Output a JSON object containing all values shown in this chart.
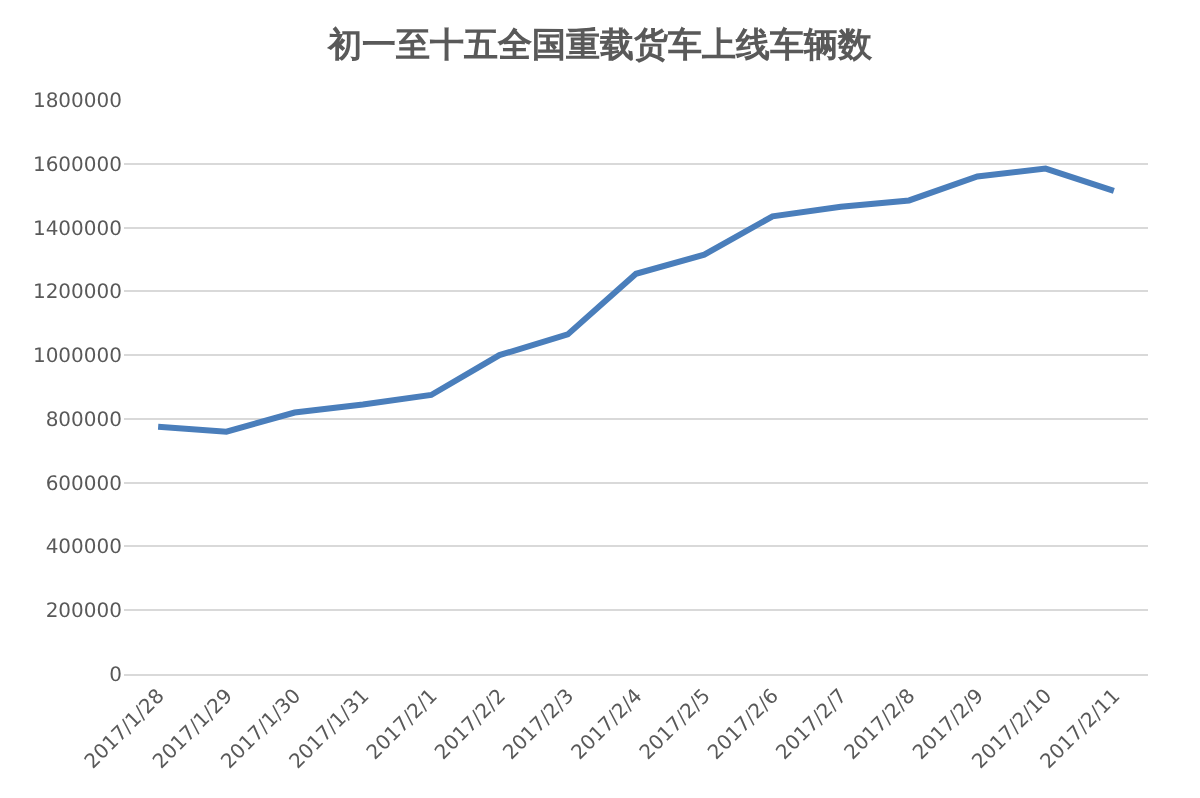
{
  "chart_data": {
    "type": "line",
    "title": "初一至十五全国重载货车上线车辆数",
    "categories": [
      "2017/1/28",
      "2017/1/29",
      "2017/1/30",
      "2017/1/31",
      "2017/2/1",
      "2017/2/2",
      "2017/2/3",
      "2017/2/4",
      "2017/2/5",
      "2017/2/6",
      "2017/2/7",
      "2017/2/8",
      "2017/2/9",
      "2017/2/10",
      "2017/2/11"
    ],
    "series": [
      {
        "color": "#4a7ebb",
        "values": [
          775000,
          760000,
          820000,
          845000,
          875000,
          1000000,
          1065000,
          1255000,
          1315000,
          1435000,
          1465000,
          1485000,
          1560000,
          1585000,
          1515000
        ]
      }
    ],
    "ylim": [
      0,
      1800000
    ],
    "yticks": [
      0,
      200000,
      400000,
      600000,
      800000,
      1000000,
      1200000,
      1400000,
      1600000,
      1800000
    ],
    "grid": "y",
    "marker": "none",
    "line_style": "solid"
  }
}
